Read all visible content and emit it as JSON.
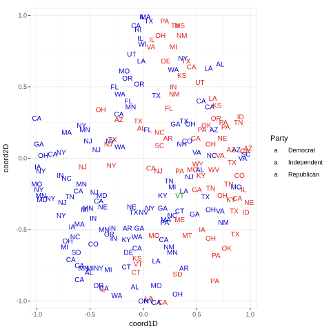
{
  "chart_data": {
    "type": "scatter",
    "xlabel": "coord1D",
    "ylabel": "coord2D",
    "xlim": [
      -1.06,
      1.06
    ],
    "ylim": [
      -1.05,
      1.05
    ],
    "x_ticks": [
      -1.0,
      -0.5,
      0.0,
      0.5,
      1.0
    ],
    "y_ticks": [
      -1.0,
      -0.5,
      0.0,
      0.5,
      1.0
    ],
    "x_tick_labels": [
      "-1.0",
      "-0.5",
      "0.0",
      "0.5",
      "1.0"
    ],
    "y_tick_labels": [
      "-1.0",
      "-0.5",
      "0.0",
      "0.5",
      "1.0"
    ],
    "grid": true,
    "legend": {
      "title": "Party",
      "position": "right",
      "entries": [
        {
          "label": "Democrat",
          "color": "#0000cd"
        },
        {
          "label": "Independent",
          "color": "#1a8a1a"
        },
        {
          "label": "Republican",
          "color": "#e0201b"
        }
      ]
    },
    "series": [
      {
        "name": "Democrat",
        "color": "#0000cd",
        "points": [
          [
            "IL",
            -0.01,
            0.99
          ],
          [
            "MA",
            0.02,
            0.99
          ],
          [
            "TX",
            0.05,
            0.96
          ],
          [
            "CA",
            -0.07,
            0.93
          ],
          [
            "RI",
            -0.05,
            0.9
          ],
          [
            "IL",
            -0.03,
            0.84
          ],
          [
            "WI",
            -0.01,
            0.8
          ],
          [
            "UT",
            -0.11,
            0.73
          ],
          [
            "LA",
            -0.02,
            0.68
          ],
          [
            "NY",
            0.37,
            0.7
          ],
          [
            "AL",
            0.72,
            0.66
          ],
          [
            "LA",
            0.61,
            0.63
          ],
          [
            "MO",
            -0.18,
            0.61
          ],
          [
            "OR",
            -0.15,
            0.56
          ],
          [
            "FL",
            -0.27,
            0.5
          ],
          [
            "OR",
            -0.04,
            0.52
          ],
          [
            "WA",
            -0.22,
            0.45
          ],
          [
            "FL",
            -0.14,
            0.4
          ],
          [
            "MN",
            -0.12,
            0.36
          ],
          [
            "CA",
            -0.23,
            0.31
          ],
          [
            "CA",
            -1.0,
            0.28
          ],
          [
            "MA",
            -0.72,
            0.18
          ],
          [
            "GA",
            -0.98,
            0.1
          ],
          [
            "NY",
            -0.77,
            0.04
          ],
          [
            "CA",
            -0.85,
            0.03
          ],
          [
            "OH",
            -0.94,
            0.02
          ],
          [
            "NY",
            -0.58,
            0.23
          ],
          [
            "MN",
            -0.55,
            0.2
          ],
          [
            "NJ",
            -0.52,
            0.12
          ],
          [
            "NJ",
            -0.44,
            0.06
          ],
          [
            "WA",
            -0.22,
            0.08
          ],
          [
            "NY",
            -0.31,
            0.12
          ],
          [
            "IA",
            -0.99,
            -0.06
          ],
          [
            "NY",
            -0.96,
            -0.09
          ],
          [
            "IN",
            -0.78,
            -0.12
          ],
          [
            "NC",
            -0.72,
            -0.14
          ],
          [
            "MN",
            -0.58,
            -0.18
          ],
          [
            "NJ",
            -0.46,
            -0.24
          ],
          [
            "CA",
            -0.42,
            -0.3
          ],
          [
            "MI",
            -0.55,
            -0.36
          ],
          [
            "MO",
            -1.0,
            -0.18
          ],
          [
            "NY",
            -0.98,
            -0.22
          ],
          [
            "MN",
            -0.96,
            -0.26
          ],
          [
            "MD",
            -0.95,
            -0.29
          ],
          [
            "TN",
            -0.69,
            -0.27
          ],
          [
            "CA",
            -0.61,
            -0.23
          ],
          [
            "NJ",
            -0.76,
            -0.31
          ],
          [
            "MN",
            -0.52,
            -0.35
          ],
          [
            "MD",
            -0.39,
            -0.26
          ],
          [
            "NE",
            -0.38,
            -0.34
          ],
          [
            "NY",
            -0.77,
            -0.4
          ],
          [
            "MN",
            -0.37,
            -0.5
          ],
          [
            "IA",
            -0.67,
            -0.48
          ],
          [
            "MA",
            -0.6,
            -0.46
          ],
          [
            "NC",
            -0.64,
            -0.55
          ],
          [
            "OH",
            -0.71,
            -0.58
          ],
          [
            "MI",
            -0.74,
            -0.62
          ],
          [
            "CO",
            -0.47,
            -0.6
          ],
          [
            "SD",
            -0.63,
            -0.66
          ],
          [
            "CA",
            -0.68,
            -0.71
          ],
          [
            "CA",
            -0.6,
            -0.75
          ],
          [
            "MN",
            -0.56,
            -0.77
          ],
          [
            "MI",
            -0.5,
            -0.77
          ],
          [
            "NY",
            -0.42,
            -0.77
          ],
          [
            "MI",
            -0.33,
            -0.78
          ],
          [
            "CT",
            -0.16,
            -0.76
          ],
          [
            "AL",
            -0.51,
            -0.8
          ],
          [
            "CA",
            -0.6,
            -0.85
          ],
          [
            "OR",
            -0.42,
            -0.89
          ],
          [
            "CA",
            -0.37,
            -0.91
          ],
          [
            "AL",
            -0.08,
            -0.9
          ],
          [
            "MO",
            0.12,
            -0.89
          ],
          [
            "OH",
            0.32,
            -0.95
          ],
          [
            "OR",
            0.0,
            -1.0
          ],
          [
            "WA",
            -0.25,
            -0.96
          ],
          [
            "NY",
            0.05,
            -1.0
          ],
          [
            "CA",
            0.12,
            -1.01
          ],
          [
            "IN",
            -0.28,
            -0.56
          ],
          [
            "KY",
            -0.16,
            -0.57
          ],
          [
            "CA",
            -0.06,
            -0.63
          ],
          [
            "DE",
            -0.14,
            -0.66
          ],
          [
            "CA",
            0.19,
            -0.57
          ],
          [
            "NM",
            0.24,
            -0.62
          ],
          [
            "MN",
            0.27,
            -0.66
          ],
          [
            "LA",
            0.12,
            -0.72
          ],
          [
            "AR",
            0.38,
            -0.77
          ],
          [
            "OR",
            -0.32,
            -0.53
          ],
          [
            "IN",
            -0.29,
            -0.49
          ],
          [
            "AR",
            -0.15,
            -0.49
          ],
          [
            "WA",
            -0.06,
            -0.55
          ],
          [
            "GA",
            -0.04,
            -0.49
          ],
          [
            "NE",
            -0.11,
            -0.34
          ],
          [
            "TX",
            -0.09,
            -0.38
          ],
          [
            "NV",
            0.0,
            -0.38
          ],
          [
            "NY",
            0.06,
            -0.35
          ],
          [
            "GA",
            0.18,
            -0.35
          ],
          [
            "MA",
            0.21,
            -0.43
          ],
          [
            "NC",
            0.27,
            -0.4
          ],
          [
            "PA",
            0.2,
            -0.45
          ],
          [
            "CT",
            0.34,
            -0.37
          ],
          [
            "GA",
            0.48,
            -0.39
          ],
          [
            "TX",
            0.58,
            -0.27
          ],
          [
            "OH",
            0.63,
            -0.36
          ],
          [
            "VA",
            0.72,
            -0.37
          ],
          [
            "NM",
            0.75,
            -0.45
          ],
          [
            "MI",
            0.27,
            -0.2
          ],
          [
            "KY",
            0.18,
            -0.26
          ],
          [
            "TN",
            0.24,
            -0.16
          ],
          [
            "LA",
            0.38,
            -0.23
          ],
          [
            "NJ",
            0.43,
            -0.13
          ],
          [
            "AL",
            0.53,
            -0.08
          ],
          [
            "AZ",
            0.87,
            0.06
          ],
          [
            "MO",
            0.87,
            -0.2
          ],
          [
            "VA",
            0.93,
            0.0
          ],
          [
            "SC",
            0.96,
            0.03
          ],
          [
            "FL",
            0.04,
            0.2
          ],
          [
            "GA",
            0.3,
            0.24
          ],
          [
            "TX",
            0.38,
            0.26
          ],
          [
            "CO",
            0.41,
            0.12
          ],
          [
            "NH",
            0.36,
            0.1
          ],
          [
            "CA",
            0.54,
            0.4
          ],
          [
            "CA",
            0.62,
            0.36
          ],
          [
            "AZ",
            0.66,
            0.2
          ],
          [
            "VA",
            0.5,
            0.04
          ],
          [
            "TX",
            0.12,
            0.44
          ],
          [
            "IN",
            -0.47,
            -0.42
          ],
          [
            "NY",
            -0.87,
            -0.28
          ],
          [
            "WA",
            0.28,
            0.62
          ],
          [
            "OH",
            0.44,
            0.24
          ],
          [
            "NC",
            0.64,
            0.02
          ]
        ]
      },
      {
        "name": "Independent",
        "color": "#1a8a1a",
        "points": [
          [
            "VT",
            0.34,
            -0.26
          ]
        ]
      },
      {
        "name": "Republican",
        "color": "#e0201b",
        "points": [
          [
            "PA",
            0.2,
            0.96
          ],
          [
            "TX",
            0.3,
            0.93
          ],
          [
            "MS",
            0.34,
            0.93
          ],
          [
            "OH",
            0.16,
            0.86
          ],
          [
            "NM",
            0.36,
            0.86
          ],
          [
            "IL",
            0.08,
            0.83
          ],
          [
            "VA",
            0.07,
            0.78
          ],
          [
            "MI",
            0.28,
            0.78
          ],
          [
            "TX",
            0.4,
            0.68
          ],
          [
            "DE",
            0.21,
            0.68
          ],
          [
            "CA",
            0.45,
            0.64
          ],
          [
            "KS",
            0.36,
            0.58
          ],
          [
            "UT",
            0.53,
            0.53
          ],
          [
            "IN",
            0.28,
            0.5
          ],
          [
            "NM",
            0.29,
            0.45
          ],
          [
            "LA",
            0.65,
            0.42
          ],
          [
            "ID",
            0.91,
            0.29
          ],
          [
            "TN",
            0.89,
            0.25
          ],
          [
            "KS",
            0.69,
            0.37
          ],
          [
            "OK",
            0.59,
            0.23
          ],
          [
            "OR",
            0.68,
            0.28
          ],
          [
            "PA",
            0.77,
            0.22
          ],
          [
            "NE",
            0.74,
            0.14
          ],
          [
            "VA",
            0.72,
            0.02
          ],
          [
            "AZ",
            0.82,
            0.06
          ],
          [
            "AZ",
            0.98,
            0.07
          ],
          [
            "CA",
            0.95,
            0.05
          ],
          [
            "TX",
            0.83,
            -0.03
          ],
          [
            "WV",
            0.66,
            -0.08
          ],
          [
            "KY",
            0.54,
            -0.12
          ],
          [
            "WY",
            0.51,
            -0.04
          ],
          [
            "MO",
            0.46,
            -0.08
          ],
          [
            "CA",
            0.49,
            0.14
          ],
          [
            "OH",
            0.63,
            0.1
          ],
          [
            "PA",
            0.55,
            0.2
          ],
          [
            "AR",
            0.23,
            0.14
          ],
          [
            "NC",
            0.15,
            0.18
          ],
          [
            "SC",
            0.15,
            0.09
          ],
          [
            "NJ",
            0.14,
            -0.09
          ],
          [
            "CA",
            0.07,
            -0.07
          ],
          [
            "TN",
            0.8,
            -0.18
          ],
          [
            "CO",
            0.9,
            -0.12
          ],
          [
            "IL",
            0.94,
            -0.22
          ],
          [
            "CA",
            0.88,
            -0.28
          ],
          [
            "NE",
            0.99,
            -0.31
          ],
          [
            "TX",
            0.85,
            -0.37
          ],
          [
            "ID",
            0.96,
            -0.38
          ],
          [
            "TN",
            0.63,
            -0.21
          ],
          [
            "OH",
            0.74,
            -0.26
          ],
          [
            "KY",
            0.82,
            -0.29
          ],
          [
            "MT",
            0.41,
            -0.54
          ],
          [
            "IA",
            0.55,
            -0.5
          ],
          [
            "OH",
            0.63,
            -0.56
          ],
          [
            "ME",
            0.34,
            -0.43
          ],
          [
            "TX",
            0.86,
            -0.53
          ],
          [
            "OK",
            0.78,
            -0.63
          ],
          [
            "PA",
            0.68,
            -0.68
          ],
          [
            "KS",
            -0.06,
            -0.7
          ],
          [
            "VT",
            -0.05,
            -0.74
          ],
          [
            "CT",
            -0.07,
            -0.8
          ],
          [
            "TX",
            -0.29,
            0.13
          ],
          [
            "TX",
            -0.05,
            0.26
          ],
          [
            "OH",
            -0.4,
            0.34
          ],
          [
            "AL",
            -0.02,
            0.21
          ],
          [
            "AZ",
            -0.23,
            0.27
          ],
          [
            "PA",
            0.34,
            -0.09
          ],
          [
            "NJ",
            -0.57,
            -0.06
          ],
          [
            "NY",
            -0.3,
            -0.05
          ],
          [
            "NJ",
            -0.33,
            0.1
          ],
          [
            "SD",
            0.32,
            -0.81
          ],
          [
            "PA",
            0.67,
            -0.86
          ],
          [
            "CA",
            0.18,
            -1.01
          ],
          [
            "IL",
            -0.38,
            -0.92
          ],
          [
            "LA",
            0.05,
            -0.98
          ],
          [
            "FL",
            0.24,
            0.35
          ],
          [
            "GA",
            0.5,
            -0.22
          ],
          [
            "MO",
            0.1,
            -0.54
          ],
          [
            "PA",
            0.75,
            0.25
          ]
        ]
      }
    ]
  }
}
